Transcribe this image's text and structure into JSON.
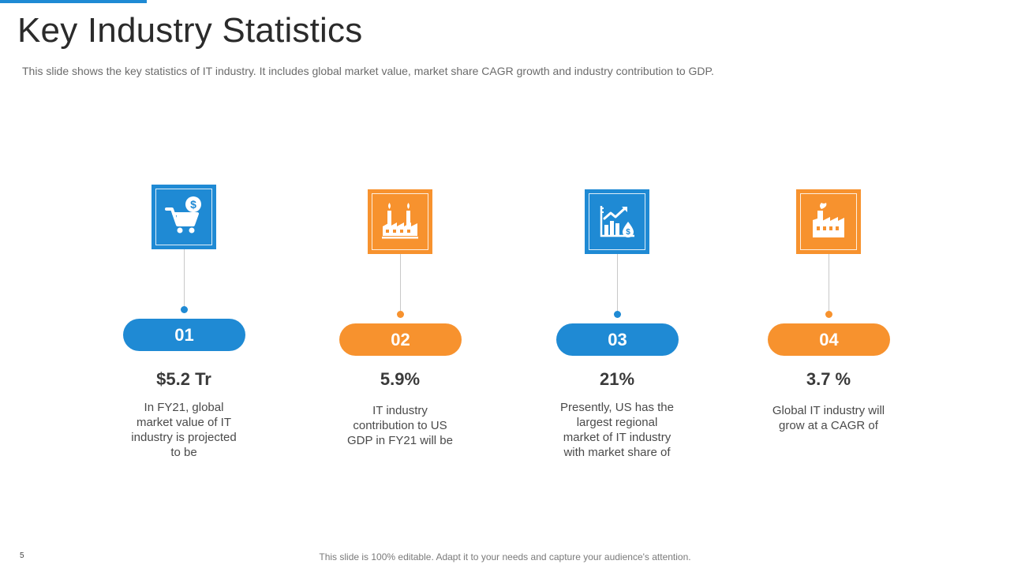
{
  "slide": {
    "title": "Key Industry Statistics",
    "subtitle": "This slide shows the key statistics of IT industry. It includes global market value, market share CAGR growth and industry contribution to GDP.",
    "page_number": "5",
    "footer": "This slide is 100% editable. Adapt it to your needs and capture your audience's attention."
  },
  "colors": {
    "blue": "#1f8ad4",
    "orange": "#f7922e"
  },
  "stats": [
    {
      "number": "01",
      "value": "$5.2 Tr",
      "description": "In FY21, global market value of IT industry is projected to be",
      "icon": "shopping-cart-dollar-icon",
      "color": "blue"
    },
    {
      "number": "02",
      "value": "5.9%",
      "description": "IT industry contribution to US GDP in FY21 will be",
      "icon": "factory-chimneys-icon",
      "color": "orange"
    },
    {
      "number": "03",
      "value": "21%",
      "description": "Presently, US has the largest regional market of IT industry with market share of",
      "icon": "growth-chart-dollar-icon",
      "color": "blue"
    },
    {
      "number": "04",
      "value": "3.7 %",
      "description": "Global IT industry will grow at a CAGR of",
      "icon": "factory-icon",
      "color": "orange"
    }
  ]
}
